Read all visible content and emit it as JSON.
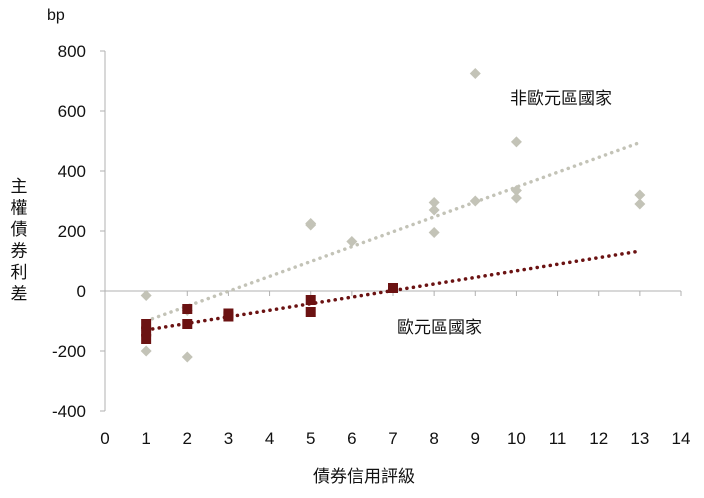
{
  "chart_data": {
    "type": "scatter",
    "y_unit": "bp",
    "xlabel": "債券信用評級",
    "ylabel": "主權債券利差",
    "xlim": [
      0,
      14
    ],
    "ylim": [
      -400,
      800
    ],
    "x_ticks": [
      0,
      1,
      2,
      3,
      4,
      5,
      6,
      7,
      8,
      9,
      10,
      11,
      12,
      13,
      14
    ],
    "y_ticks": [
      -400,
      -200,
      0,
      200,
      400,
      600,
      800
    ],
    "grid": false,
    "series": [
      {
        "name": "非歐元區國家",
        "color": "#c3c3b7",
        "marker": "diamond",
        "points": [
          [
            1,
            -15
          ],
          [
            1,
            -130
          ],
          [
            1,
            -200
          ],
          [
            2,
            -220
          ],
          [
            2,
            -65
          ],
          [
            5,
            225
          ],
          [
            5,
            220
          ],
          [
            6,
            165
          ],
          [
            8,
            295
          ],
          [
            8,
            270
          ],
          [
            8,
            195
          ],
          [
            9,
            725
          ],
          [
            9,
            300
          ],
          [
            10,
            497
          ],
          [
            10,
            335
          ],
          [
            10,
            310
          ],
          [
            13,
            320
          ],
          [
            13,
            290
          ]
        ],
        "trendline": {
          "x": [
            1,
            13
          ],
          "y": [
            -100,
            495
          ]
        }
      },
      {
        "name": "歐元區國家",
        "color": "#6b1212",
        "marker": "square",
        "points": [
          [
            1,
            -110
          ],
          [
            1,
            -135
          ],
          [
            1,
            -160
          ],
          [
            2,
            -60
          ],
          [
            2,
            -110
          ],
          [
            3,
            -75
          ],
          [
            3,
            -85
          ],
          [
            5,
            -30
          ],
          [
            5,
            -70
          ],
          [
            7,
            10
          ]
        ],
        "trendline": {
          "x": [
            1,
            13
          ],
          "y": [
            -130,
            133
          ]
        }
      }
    ]
  }
}
